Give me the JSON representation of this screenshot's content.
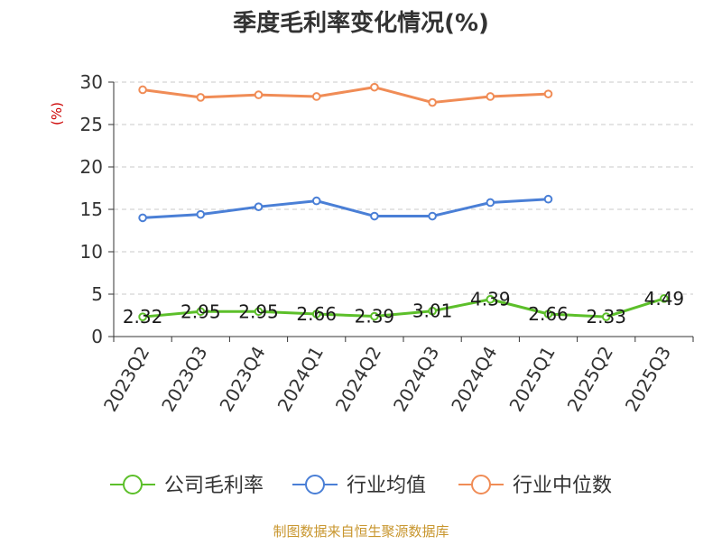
{
  "chart_data": {
    "type": "line",
    "title": "季度毛利率变化情况(%)",
    "ylabel": "(%)",
    "xlabel": "",
    "ylim": [
      0,
      30
    ],
    "yticks": [
      0,
      5,
      10,
      15,
      20,
      25,
      30
    ],
    "grid": true,
    "legend_position": "bottom",
    "categories": [
      "2023Q2",
      "2023Q3",
      "2023Q4",
      "2024Q1",
      "2024Q2",
      "2024Q3",
      "2024Q4",
      "2025Q1",
      "2025Q2",
      "2025Q3"
    ],
    "series": [
      {
        "name": "公司毛利率",
        "color": "#5cbf2a",
        "show_labels": true,
        "values": [
          2.32,
          2.95,
          2.95,
          2.66,
          2.39,
          3.01,
          4.39,
          2.66,
          2.33,
          4.49
        ],
        "labels": [
          "2.32",
          "2.95",
          "2.95",
          "2.66",
          "2.39",
          "3.01",
          "4.39",
          "2.66",
          "2.33",
          "4.49"
        ]
      },
      {
        "name": "行业均值",
        "color": "#4a7fd6",
        "show_labels": false,
        "values": [
          14.0,
          14.4,
          15.3,
          16.0,
          14.2,
          14.2,
          15.8,
          16.2,
          null,
          null
        ]
      },
      {
        "name": "行业中位数",
        "color": "#f08c56",
        "show_labels": false,
        "values": [
          29.1,
          28.2,
          28.5,
          28.3,
          29.4,
          27.6,
          28.3,
          28.6,
          null,
          null
        ]
      }
    ],
    "source": "制图数据来自恒生聚源数据库"
  }
}
